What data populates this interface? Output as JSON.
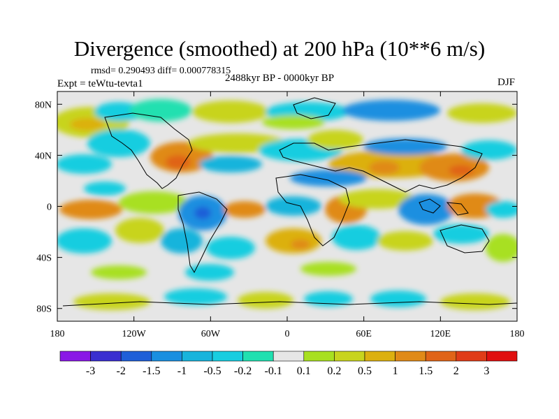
{
  "title": "Divergence (smoothed) at 200 hPa (10**6 m/s)",
  "stats": "rmsd= 0.290493 diff= 0.000778315",
  "expt": "Expt = teWtu-tevta1",
  "period": "2488kyr BP - 0000kyr BP",
  "season": "DJF",
  "map": {
    "lon_ticks": [
      "180",
      "120W",
      "60W",
      "0",
      "60E",
      "120E",
      "180"
    ],
    "lat_ticks": [
      "80N",
      "40N",
      "0",
      "40S",
      "80S"
    ],
    "background_color": "#e6e6e6",
    "land_outline_color": "#000000"
  },
  "colorbar": {
    "labels": [
      "-3",
      "-2",
      "-1.5",
      "-1",
      "-0.5",
      "-0.2",
      "-0.1",
      "0.1",
      "0.2",
      "0.5",
      "1",
      "1.5",
      "2",
      "3"
    ],
    "colors": [
      "#8a18e6",
      "#3a2fd0",
      "#1f5fd8",
      "#1a8fe0",
      "#18b4dc",
      "#18cde0",
      "#20e0b0",
      "#e6e6e6",
      "#a8e020",
      "#c8d41e",
      "#dcb010",
      "#e08a18",
      "#e06418",
      "#e03c18",
      "#e01010"
    ]
  }
}
